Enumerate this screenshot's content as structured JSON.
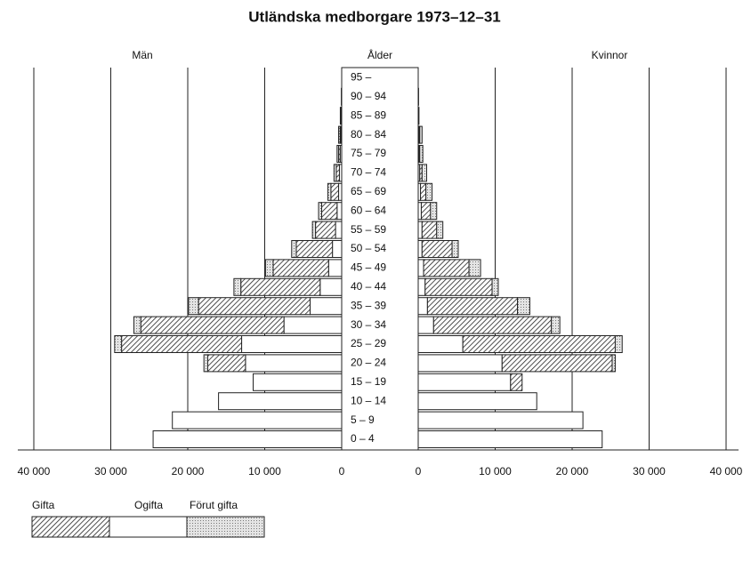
{
  "chart_data": {
    "type": "population_pyramid",
    "title": "Utländska medborgare 1973–12–31",
    "sides": [
      "Män",
      "Kvinnor"
    ],
    "category_label": "Ålder",
    "categories": [
      "0 – 4",
      "5 – 9",
      "10 – 14",
      "15 – 19",
      "20 – 24",
      "25 – 29",
      "30 – 34",
      "35 – 39",
      "40 – 44",
      "45 – 49",
      "50 – 54",
      "55 – 59",
      "60 – 64",
      "65 – 69",
      "70 – 74",
      "75 – 79",
      "80 – 84",
      "85 – 89",
      "90 – 94",
      "95 –"
    ],
    "series": [
      {
        "name": "Ogifta",
        "pattern": "none",
        "color": "#ffffff",
        "men": [
          24500,
          22000,
          16000,
          11500,
          12500,
          13000,
          7500,
          4100,
          2800,
          1700,
          1200,
          800,
          600,
          400,
          300,
          200,
          100,
          50,
          0,
          0
        ],
        "women": [
          23900,
          21400,
          15400,
          12000,
          10900,
          5800,
          2000,
          1200,
          900,
          700,
          500,
          500,
          400,
          300,
          200,
          100,
          100,
          0,
          0,
          0
        ]
      },
      {
        "name": "Gifta",
        "pattern": "hatch",
        "color": "#ffffff",
        "men": [
          0,
          0,
          0,
          0,
          4900,
          15600,
          18600,
          14500,
          10300,
          7200,
          4700,
          2600,
          2000,
          1000,
          400,
          200,
          100,
          30,
          0,
          0
        ],
        "women": [
          0,
          0,
          0,
          1500,
          14300,
          19800,
          15300,
          11700,
          8700,
          5900,
          3900,
          1900,
          1200,
          700,
          300,
          100,
          100,
          0,
          0,
          0
        ]
      },
      {
        "name": "Förut gifta",
        "pattern": "dots",
        "color": "#e4e4e4",
        "men": [
          0,
          0,
          0,
          0,
          500,
          900,
          900,
          1300,
          900,
          1000,
          600,
          400,
          400,
          400,
          300,
          200,
          200,
          100,
          50,
          0
        ],
        "women": [
          0,
          0,
          0,
          0,
          400,
          900,
          1100,
          1600,
          800,
          1500,
          800,
          800,
          800,
          800,
          600,
          400,
          300,
          100,
          50,
          0
        ]
      }
    ],
    "legend_order": [
      1,
      0,
      2
    ],
    "xlim": [
      0,
      40000
    ],
    "xticks": [
      0,
      {
        "value": 10000,
        "label": "10 000"
      },
      {
        "value": 20000,
        "label": "20 000"
      },
      {
        "value": 30000,
        "label": "30 000"
      },
      {
        "value": 40000,
        "label": "40 000"
      }
    ],
    "grid": true
  }
}
